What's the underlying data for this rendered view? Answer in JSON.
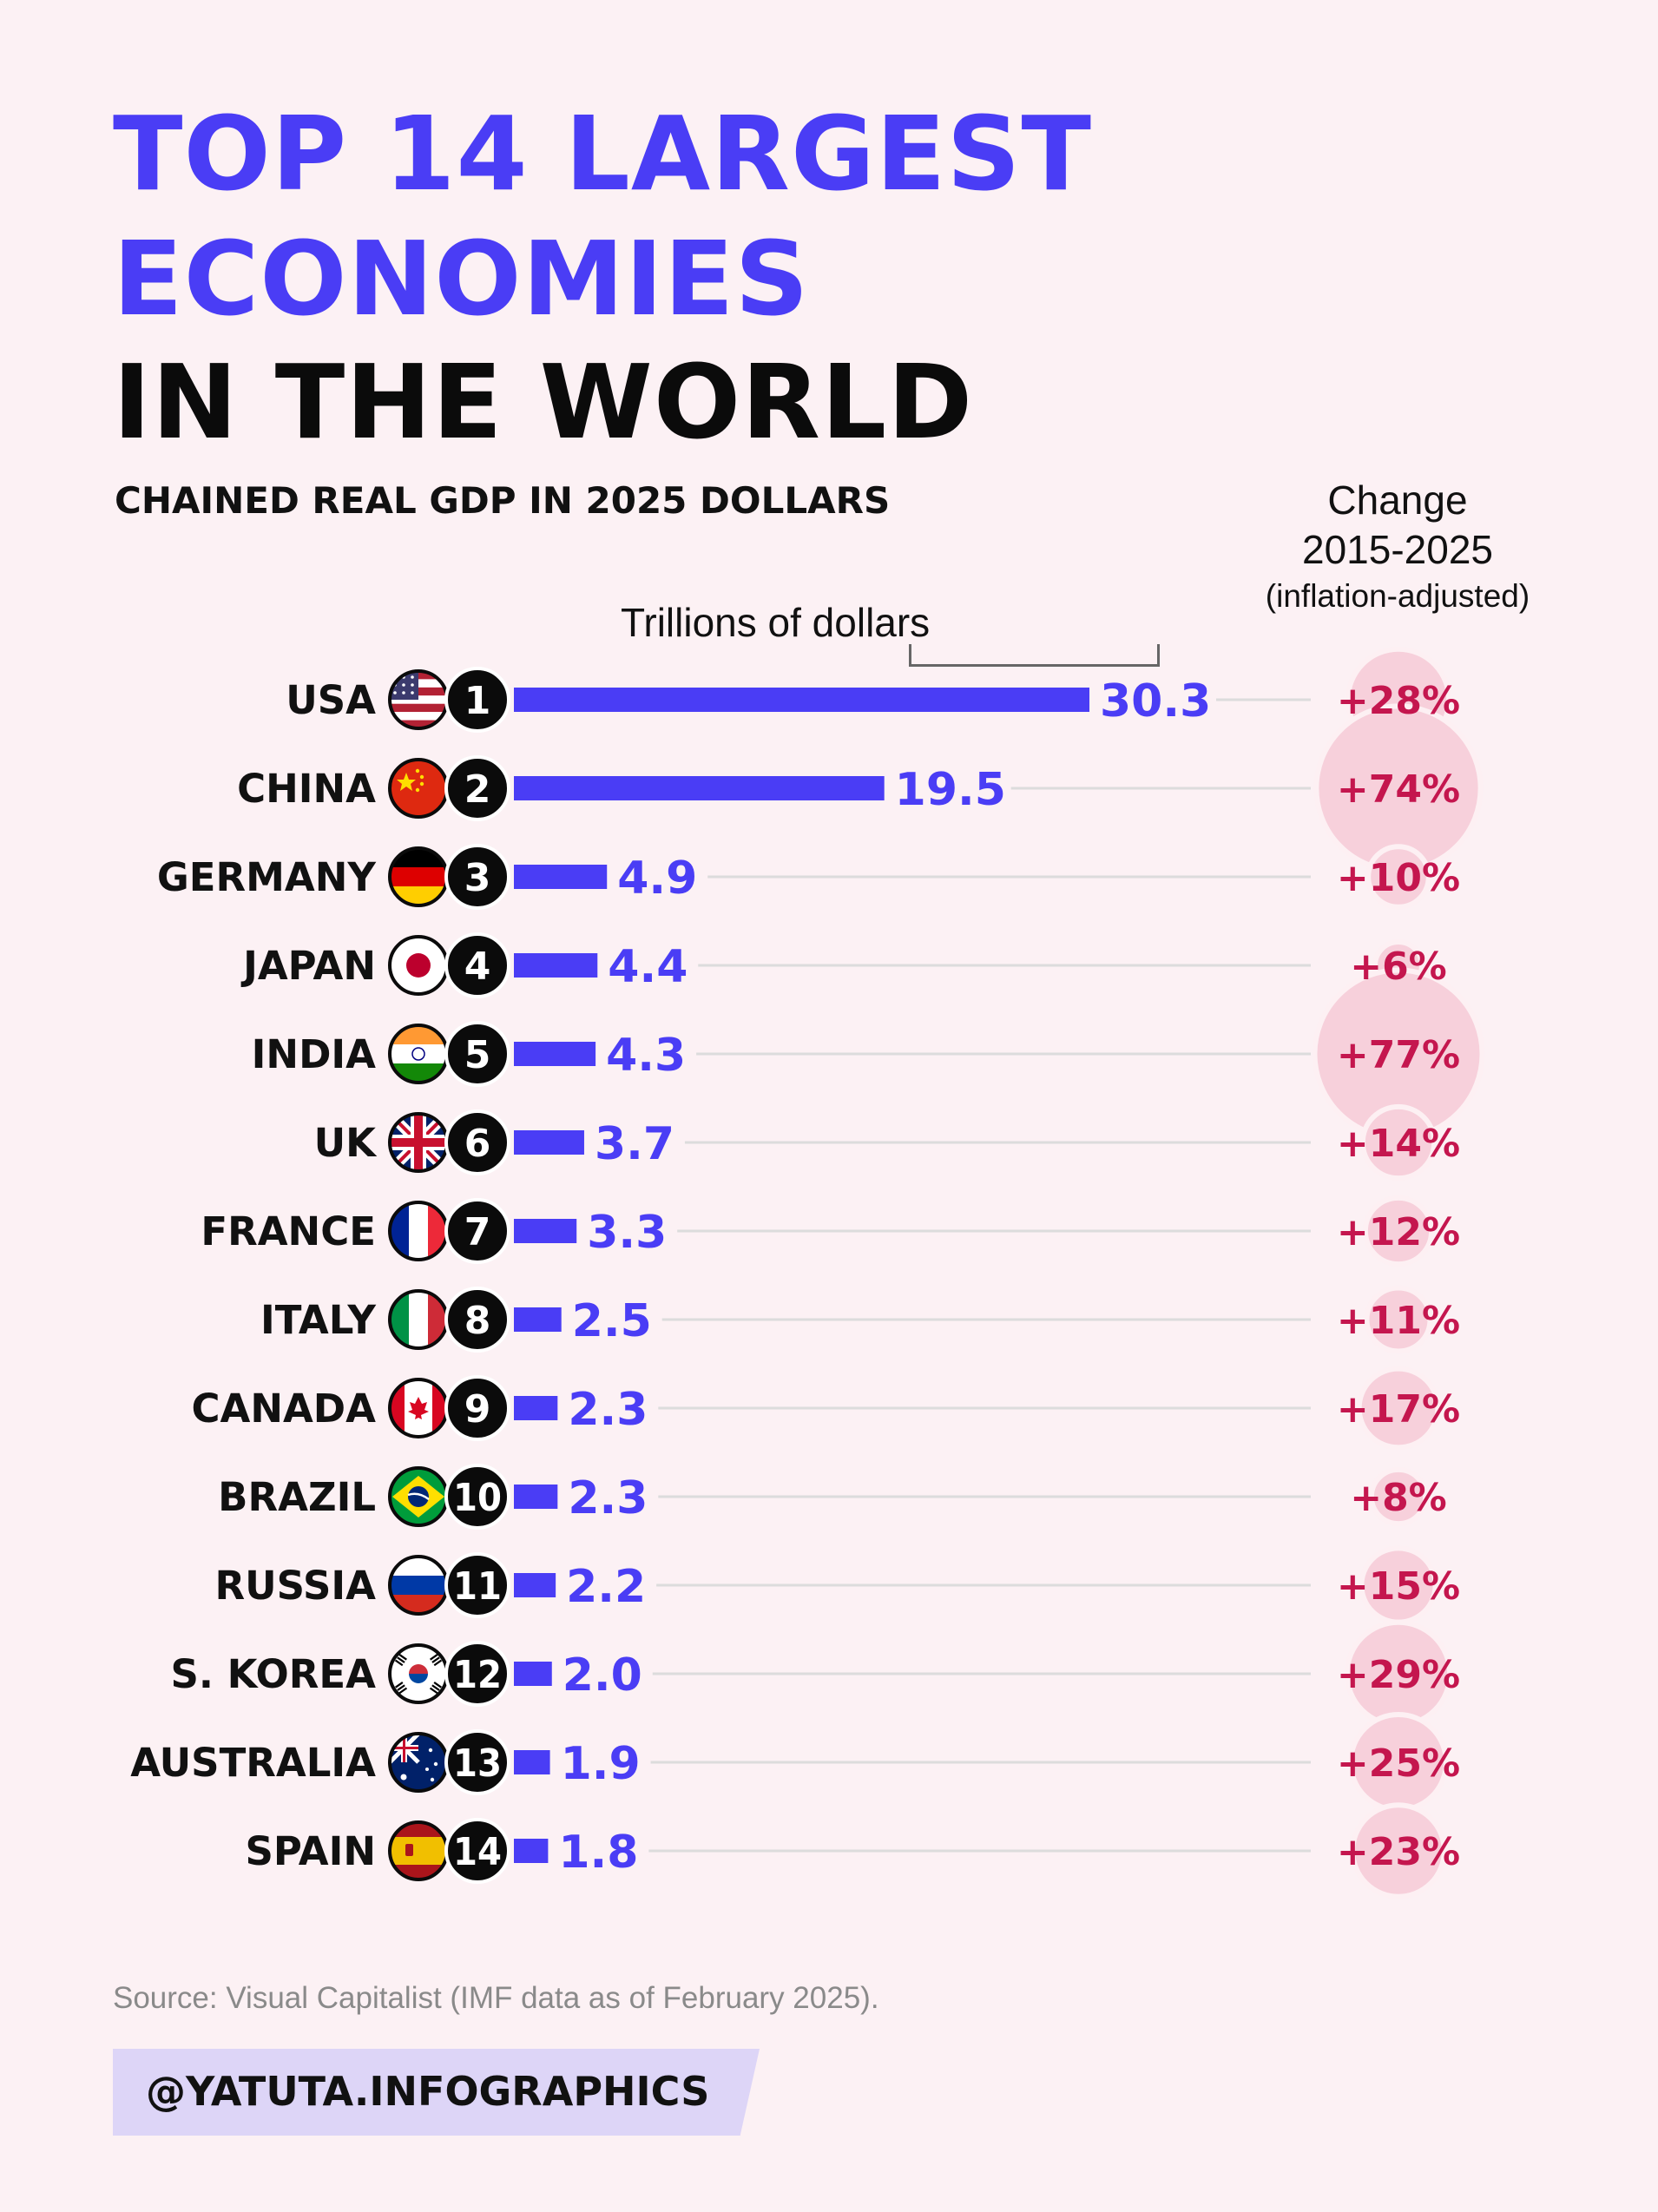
{
  "colors": {
    "background": "#fcf1f4",
    "title_accent": "#4a3df5",
    "bar": "#4a3df5",
    "bubble": "#f7d0db",
    "bubble_edge": "#fdf0f3",
    "change_text": "#c4164e",
    "rank_badge": "#0b0b0b",
    "leader_line": "#dcdcdc"
  },
  "header": {
    "title_line1": "TOP 14 LARGEST",
    "title_line2": "ECONOMIES",
    "title_line3": "IN THE WORLD",
    "subtitle": "CHAINED REAL GDP IN 2025 DOLLARS",
    "change_title_line1": "Change",
    "change_title_line2": "2015-2025",
    "change_title_line3": "(inflation-adjusted)",
    "unit_label": "Trillions of dollars"
  },
  "chart_data": {
    "type": "bar",
    "orientation": "horizontal",
    "title": "TOP 14 LARGEST ECONOMIES IN THE WORLD",
    "subtitle": "CHAINED REAL GDP IN 2025 DOLLARS",
    "value_unit": "Trillions of dollars",
    "change_column_title": "Change 2015-2025 (inflation-adjusted)",
    "categories": [
      "USA",
      "CHINA",
      "GERMANY",
      "JAPAN",
      "INDIA",
      "UK",
      "FRANCE",
      "ITALY",
      "CANADA",
      "BRAZIL",
      "RUSSIA",
      "S. KOREA",
      "AUSTRALIA",
      "SPAIN"
    ],
    "ranks": [
      1,
      2,
      3,
      4,
      5,
      6,
      7,
      8,
      9,
      10,
      11,
      12,
      13,
      14
    ],
    "values": [
      30.3,
      19.5,
      4.9,
      4.4,
      4.3,
      3.7,
      3.3,
      2.5,
      2.3,
      2.3,
      2.2,
      2.0,
      1.9,
      1.8
    ],
    "value_labels": [
      "30.3",
      "19.5",
      "4.9",
      "4.4",
      "4.3",
      "3.7",
      "3.3",
      "2.5",
      "2.3",
      "2.3",
      "2.2",
      "2.0",
      "1.9",
      "1.8"
    ],
    "change_pct": [
      28,
      74,
      10,
      6,
      77,
      14,
      12,
      11,
      17,
      8,
      15,
      29,
      25,
      23
    ],
    "change_labels": [
      "+28%",
      "+74%",
      "+10%",
      "+6%",
      "+77%",
      "+14%",
      "+12%",
      "+11%",
      "+17%",
      "+8%",
      "+15%",
      "+29%",
      "+25%",
      "+23%"
    ],
    "flags": [
      "usa-flag-icon",
      "china-flag-icon",
      "germany-flag-icon",
      "japan-flag-icon",
      "india-flag-icon",
      "uk-flag-icon",
      "france-flag-icon",
      "italy-flag-icon",
      "canada-flag-icon",
      "brazil-flag-icon",
      "russia-flag-icon",
      "south-korea-flag-icon",
      "australia-flag-icon",
      "spain-flag-icon"
    ],
    "grid": false,
    "legend": "none"
  },
  "footer": {
    "source": "Source: Visual Capitalist (IMF data as of February 2025).",
    "handle": "@YATUTA.INFOGRAPHICS"
  }
}
